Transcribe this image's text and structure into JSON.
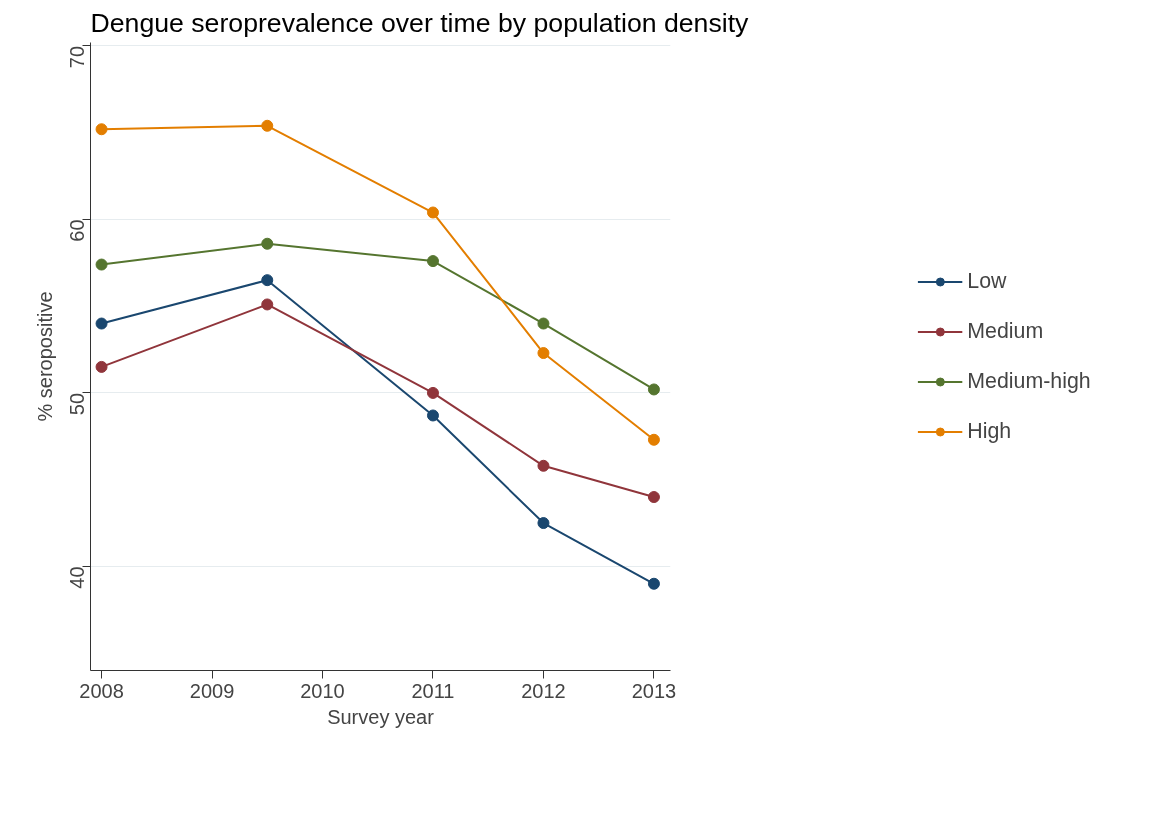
{
  "chart_data": {
    "type": "line",
    "title": "Dengue seroprevalence over time by population density",
    "xlabel": "Survey year",
    "ylabel": "% seropositive",
    "x": [
      2008,
      2009.5,
      2011,
      2012,
      2013
    ],
    "series": [
      {
        "name": "Low",
        "color": "#1a476f",
        "values": [
          54.0,
          56.5,
          48.7,
          42.5,
          39.0
        ]
      },
      {
        "name": "Medium",
        "color": "#90353b",
        "values": [
          51.5,
          55.1,
          50.0,
          45.8,
          44.0
        ]
      },
      {
        "name": "Medium-high",
        "color": "#55752f",
        "values": [
          57.4,
          58.6,
          57.6,
          54.0,
          50.2
        ]
      },
      {
        "name": "High",
        "color": "#e37e00",
        "values": [
          65.2,
          65.4,
          60.4,
          52.3,
          47.3
        ]
      }
    ],
    "xlim": [
      2007.9,
      2013.15
    ],
    "ylim": [
      34,
      70.2
    ],
    "xticks": [
      2008,
      2009,
      2010,
      2011,
      2012,
      2013
    ],
    "yticks": [
      40,
      50,
      60,
      70
    ],
    "grid": "y",
    "legend": "right",
    "marker": "circle",
    "line_style": "solid"
  }
}
